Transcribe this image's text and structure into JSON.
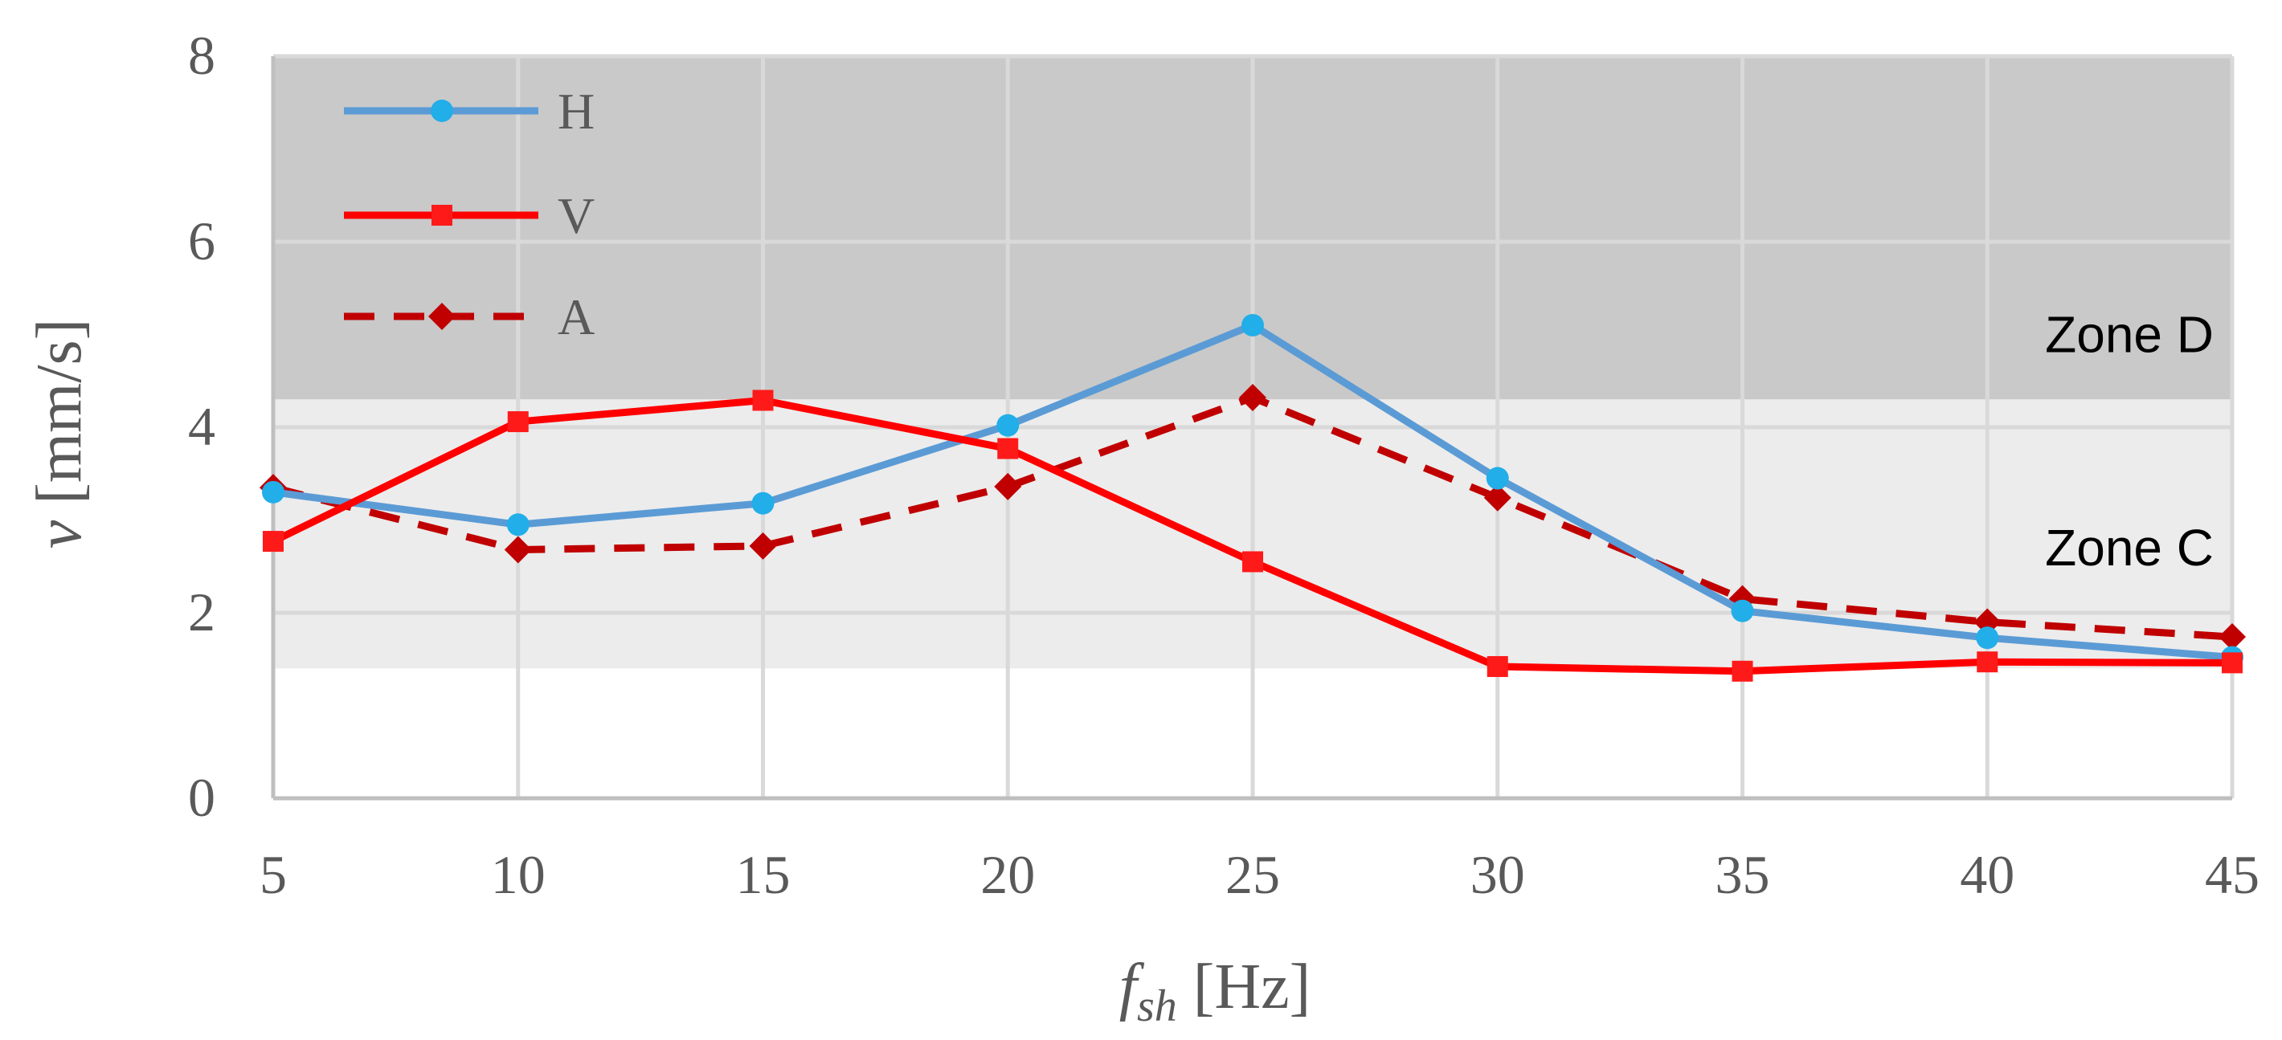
{
  "chart_data": {
    "type": "line",
    "x": [
      5,
      10,
      15,
      20,
      25,
      30,
      35,
      40,
      45
    ],
    "xlim": [
      5,
      45
    ],
    "ylim": [
      0,
      8
    ],
    "x_ticks": [
      "5",
      "10",
      "15",
      "20",
      "25",
      "30",
      "35",
      "40",
      "45"
    ],
    "y_ticks": [
      "0",
      "2",
      "4",
      "6",
      "8"
    ],
    "xlabel": {
      "main": "f",
      "sub": "sh",
      "unit": " [Hz]"
    },
    "ylabel": {
      "main": "v",
      "unit": " [mm/s]"
    },
    "grid": true,
    "legend_position": "top-left",
    "zones": [
      {
        "name": "Zone D",
        "from": 4.3,
        "to": 8.0,
        "color": "#c9c9c9"
      },
      {
        "name": "Zone C",
        "from": 1.4,
        "to": 4.3,
        "color": "#ececec"
      }
    ],
    "series": [
      {
        "name": "H",
        "values": [
          3.3,
          2.95,
          3.18,
          4.02,
          5.1,
          3.45,
          2.02,
          1.73,
          1.52
        ],
        "color": "#5b9bd5",
        "marker_color": "#22aee8",
        "marker": "circle",
        "dash": false
      },
      {
        "name": "V",
        "values": [
          2.77,
          4.06,
          4.29,
          3.77,
          2.55,
          1.42,
          1.37,
          1.47,
          1.46
        ],
        "color": "#ff0000",
        "marker_color": "#ff1a1a",
        "marker": "square",
        "dash": false
      },
      {
        "name": "A",
        "values": [
          3.35,
          2.68,
          2.72,
          3.36,
          4.32,
          3.24,
          2.15,
          1.9,
          1.74
        ],
        "color": "#c00000",
        "marker_color": "#c00000",
        "marker": "diamond",
        "dash": true
      }
    ]
  }
}
